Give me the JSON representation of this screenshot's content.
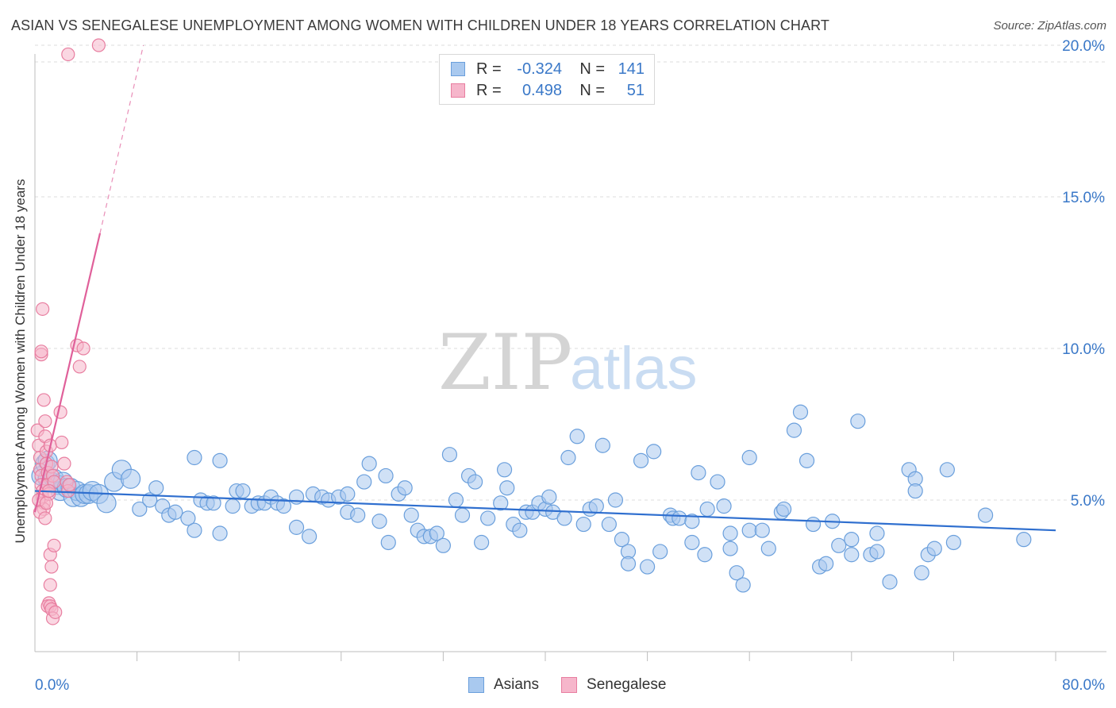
{
  "title": "ASIAN VS SENEGALESE UNEMPLOYMENT AMONG WOMEN WITH CHILDREN UNDER 18 YEARS CORRELATION CHART",
  "source": "Source: ZipAtlas.com",
  "watermark": {
    "zip": "ZIP",
    "atlas": "atlas"
  },
  "colors": {
    "asian_fill": "#a9c9ef",
    "asian_stroke": "#6a9fdc",
    "asian_line": "#2f6fcf",
    "sen_fill": "#f6b6cb",
    "sen_stroke": "#e87ea0",
    "sen_line": "#e0609a",
    "tick_label": "#3a78c8",
    "grid": "#dcdcdc"
  },
  "legend": {
    "rows": [
      {
        "r_label": "R =",
        "r_value": "-0.324",
        "n_label": "N =",
        "n_value": "141"
      },
      {
        "r_label": "R =",
        "r_value": "0.498",
        "n_label": "N =",
        "n_value": "51"
      }
    ]
  },
  "bottom_legend": {
    "asians": "Asians",
    "senegalese": "Senegalese"
  },
  "chart_data": {
    "type": "scatter",
    "title": "ASIAN VS SENEGALESE UNEMPLOYMENT AMONG WOMEN WITH CHILDREN UNDER 18 YEARS CORRELATION CHART",
    "xlabel": "",
    "ylabel": "Unemployment Among Women with Children Under 18 years",
    "xlim": [
      0,
      80
    ],
    "ylim": [
      0,
      20.5
    ],
    "x_tick_labels": [
      "0.0%",
      "80.0%"
    ],
    "y_ticks": [
      5,
      10,
      15,
      20
    ],
    "y_tick_labels": [
      "5.0%",
      "10.0%",
      "15.0%",
      "20.0%"
    ],
    "grid": "horizontal dashed",
    "legend_placement": "top-center",
    "series": [
      {
        "name": "Asians",
        "trend": {
          "x": [
            0,
            80
          ],
          "y": [
            5.3,
            4.0
          ]
        },
        "points": [
          [
            0.5,
            5.8
          ],
          [
            0.8,
            6.2
          ],
          [
            1.0,
            5.7
          ],
          [
            1.3,
            5.6
          ],
          [
            1.5,
            5.7
          ],
          [
            1.8,
            5.5
          ],
          [
            2.0,
            5.3
          ],
          [
            2.2,
            5.6
          ],
          [
            2.5,
            5.4
          ],
          [
            2.8,
            5.4
          ],
          [
            3.0,
            5.1
          ],
          [
            3.3,
            5.3
          ],
          [
            3.6,
            5.1
          ],
          [
            3.9,
            5.2
          ],
          [
            4.2,
            5.2
          ],
          [
            4.5,
            5.3
          ],
          [
            5.0,
            5.2
          ],
          [
            5.6,
            4.9
          ],
          [
            6.2,
            5.6
          ],
          [
            6.8,
            6.0
          ],
          [
            7.5,
            5.7
          ],
          [
            8.2,
            4.7
          ],
          [
            9.0,
            5.0
          ],
          [
            9.5,
            5.4
          ],
          [
            10.0,
            4.8
          ],
          [
            10.5,
            4.5
          ],
          [
            11.0,
            4.6
          ],
          [
            12.0,
            4.4
          ],
          [
            12.5,
            6.4
          ],
          [
            12.5,
            4.0
          ],
          [
            13.0,
            5.0
          ],
          [
            13.5,
            4.9
          ],
          [
            14.0,
            4.9
          ],
          [
            14.5,
            6.3
          ],
          [
            14.5,
            3.9
          ],
          [
            15.5,
            4.8
          ],
          [
            15.8,
            5.3
          ],
          [
            16.3,
            5.3
          ],
          [
            17.0,
            4.8
          ],
          [
            17.5,
            4.9
          ],
          [
            18.0,
            4.9
          ],
          [
            18.5,
            5.1
          ],
          [
            19.0,
            4.9
          ],
          [
            19.5,
            4.8
          ],
          [
            20.5,
            5.1
          ],
          [
            20.5,
            4.1
          ],
          [
            21.5,
            3.8
          ],
          [
            21.8,
            5.2
          ],
          [
            22.5,
            5.1
          ],
          [
            23.0,
            5.0
          ],
          [
            23.8,
            5.1
          ],
          [
            24.5,
            5.2
          ],
          [
            24.5,
            4.6
          ],
          [
            25.3,
            4.5
          ],
          [
            25.8,
            5.6
          ],
          [
            26.2,
            6.2
          ],
          [
            27.0,
            4.3
          ],
          [
            27.5,
            5.8
          ],
          [
            27.7,
            3.6
          ],
          [
            28.5,
            5.2
          ],
          [
            29.0,
            5.4
          ],
          [
            29.5,
            4.5
          ],
          [
            30.0,
            4.0
          ],
          [
            30.5,
            3.8
          ],
          [
            31.0,
            3.8
          ],
          [
            31.5,
            3.9
          ],
          [
            32.0,
            3.5
          ],
          [
            32.5,
            6.5
          ],
          [
            33.0,
            5.0
          ],
          [
            33.5,
            4.5
          ],
          [
            34.0,
            5.8
          ],
          [
            34.5,
            5.6
          ],
          [
            35.0,
            3.6
          ],
          [
            35.5,
            4.4
          ],
          [
            36.5,
            4.9
          ],
          [
            36.8,
            6.0
          ],
          [
            37.0,
            5.4
          ],
          [
            37.5,
            4.2
          ],
          [
            38.0,
            4.0
          ],
          [
            38.5,
            4.6
          ],
          [
            39.0,
            4.6
          ],
          [
            39.5,
            4.9
          ],
          [
            40.0,
            4.7
          ],
          [
            40.3,
            5.1
          ],
          [
            40.6,
            4.6
          ],
          [
            41.5,
            4.4
          ],
          [
            41.8,
            6.4
          ],
          [
            42.5,
            7.1
          ],
          [
            43.0,
            4.2
          ],
          [
            43.5,
            4.7
          ],
          [
            44.0,
            4.8
          ],
          [
            44.5,
            6.8
          ],
          [
            45.0,
            4.2
          ],
          [
            45.5,
            5.0
          ],
          [
            46.0,
            3.7
          ],
          [
            46.5,
            3.3
          ],
          [
            46.5,
            2.9
          ],
          [
            47.5,
            6.3
          ],
          [
            48.0,
            2.8
          ],
          [
            48.5,
            6.6
          ],
          [
            49.0,
            3.3
          ],
          [
            49.8,
            4.5
          ],
          [
            50.0,
            4.4
          ],
          [
            50.5,
            4.4
          ],
          [
            51.5,
            4.3
          ],
          [
            51.5,
            3.6
          ],
          [
            52.0,
            5.9
          ],
          [
            52.5,
            3.2
          ],
          [
            52.7,
            4.7
          ],
          [
            53.5,
            5.6
          ],
          [
            54.0,
            4.8
          ],
          [
            54.5,
            3.9
          ],
          [
            54.5,
            3.4
          ],
          [
            55.0,
            2.6
          ],
          [
            55.5,
            2.2
          ],
          [
            56.0,
            6.4
          ],
          [
            56.0,
            4.0
          ],
          [
            57.0,
            4.0
          ],
          [
            57.5,
            3.4
          ],
          [
            58.5,
            4.6
          ],
          [
            58.7,
            4.7
          ],
          [
            59.5,
            7.3
          ],
          [
            60.0,
            7.9
          ],
          [
            60.5,
            6.3
          ],
          [
            61.0,
            4.2
          ],
          [
            61.5,
            2.8
          ],
          [
            62.0,
            2.9
          ],
          [
            62.5,
            4.3
          ],
          [
            63.0,
            3.5
          ],
          [
            64.0,
            3.7
          ],
          [
            64.0,
            3.2
          ],
          [
            64.5,
            7.6
          ],
          [
            65.5,
            3.2
          ],
          [
            66.0,
            3.9
          ],
          [
            66.0,
            3.3
          ],
          [
            67.0,
            2.3
          ],
          [
            68.5,
            6.0
          ],
          [
            69.0,
            5.7
          ],
          [
            69.0,
            5.3
          ],
          [
            69.5,
            2.6
          ],
          [
            70.0,
            3.2
          ],
          [
            70.5,
            3.4
          ],
          [
            71.5,
            6.0
          ],
          [
            72.0,
            3.6
          ],
          [
            74.5,
            4.5
          ],
          [
            77.5,
            3.7
          ],
          [
            1.0,
            6.3
          ]
        ]
      },
      {
        "name": "Senegalese",
        "trend": {
          "x": [
            0,
            5.1
          ],
          "y": [
            4.6,
            13.8
          ]
        },
        "trend_extended": {
          "x": [
            5.1,
            8.5
          ],
          "y": [
            13.8,
            20.0
          ]
        },
        "points": [
          [
            0.2,
            7.3
          ],
          [
            0.3,
            6.8
          ],
          [
            0.4,
            6.4
          ],
          [
            0.4,
            6.0
          ],
          [
            0.5,
            5.8
          ],
          [
            0.5,
            5.5
          ],
          [
            0.6,
            5.3
          ],
          [
            0.6,
            5.1
          ],
          [
            0.7,
            4.9
          ],
          [
            0.7,
            4.7
          ],
          [
            0.5,
            9.8
          ],
          [
            0.5,
            9.9
          ],
          [
            0.6,
            11.3
          ],
          [
            0.7,
            8.3
          ],
          [
            0.8,
            7.6
          ],
          [
            0.8,
            7.1
          ],
          [
            0.9,
            6.6
          ],
          [
            0.9,
            6.2
          ],
          [
            1.0,
            5.9
          ],
          [
            1.0,
            5.5
          ],
          [
            1.1,
            5.2
          ],
          [
            1.2,
            6.8
          ],
          [
            1.3,
            6.1
          ],
          [
            1.4,
            5.8
          ],
          [
            1.5,
            5.6
          ],
          [
            1.2,
            3.2
          ],
          [
            1.3,
            2.8
          ],
          [
            1.2,
            2.2
          ],
          [
            1.1,
            1.6
          ],
          [
            1.0,
            1.5
          ],
          [
            1.2,
            1.5
          ],
          [
            1.3,
            1.4
          ],
          [
            1.4,
            1.1
          ],
          [
            1.5,
            3.5
          ],
          [
            1.6,
            1.3
          ],
          [
            2.0,
            7.9
          ],
          [
            2.1,
            6.9
          ],
          [
            2.3,
            6.2
          ],
          [
            2.5,
            5.6
          ],
          [
            2.6,
            5.3
          ],
          [
            2.7,
            5.5
          ],
          [
            3.3,
            10.1
          ],
          [
            3.5,
            9.4
          ],
          [
            3.8,
            10.0
          ],
          [
            2.6,
            19.7
          ],
          [
            5.0,
            20.0
          ],
          [
            0.3,
            5.0
          ],
          [
            0.4,
            4.6
          ],
          [
            0.8,
            4.4
          ],
          [
            0.9,
            4.9
          ],
          [
            1.1,
            5.3
          ]
        ]
      }
    ]
  }
}
